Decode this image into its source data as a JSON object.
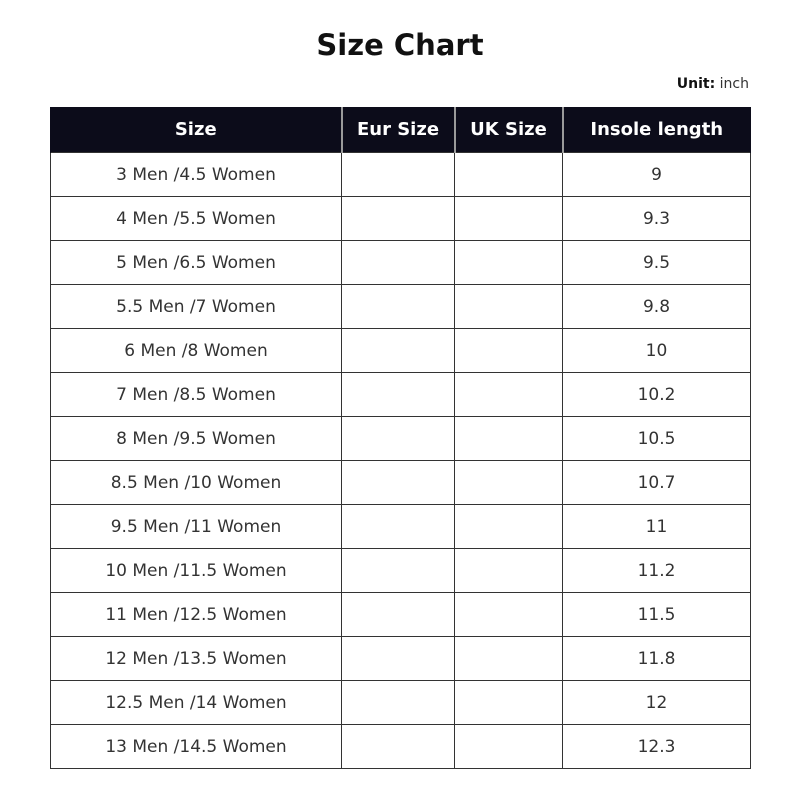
{
  "title": "Size Chart",
  "unit": {
    "label": "Unit:",
    "value": "inch"
  },
  "table": {
    "headers": [
      "Size",
      "Eur Size",
      "UK Size",
      "Insole length"
    ],
    "rows": [
      [
        "3 Men /4.5 Women",
        "",
        "",
        "9"
      ],
      [
        "4 Men /5.5 Women",
        "",
        "",
        "9.3"
      ],
      [
        "5 Men /6.5 Women",
        "",
        "",
        "9.5"
      ],
      [
        "5.5 Men /7 Women",
        "",
        "",
        "9.8"
      ],
      [
        "6 Men /8 Women",
        "",
        "",
        "10"
      ],
      [
        "7 Men /8.5 Women",
        "",
        "",
        "10.2"
      ],
      [
        "8 Men /9.5 Women",
        "",
        "",
        "10.5"
      ],
      [
        "8.5 Men /10 Women",
        "",
        "",
        "10.7"
      ],
      [
        "9.5 Men /11 Women",
        "",
        "",
        "11"
      ],
      [
        "10 Men /11.5 Women",
        "",
        "",
        "11.2"
      ],
      [
        "11 Men /12.5 Women",
        "",
        "",
        "11.5"
      ],
      [
        "12 Men /13.5 Women",
        "",
        "",
        "11.8"
      ],
      [
        "12.5 Men /14 Women",
        "",
        "",
        "12"
      ],
      [
        "13 Men /14.5 Women",
        "",
        "",
        "12.3"
      ]
    ]
  },
  "colors": {
    "header_bg": "#0c0c1a",
    "header_text": "#ffffff",
    "border": "#333333"
  }
}
